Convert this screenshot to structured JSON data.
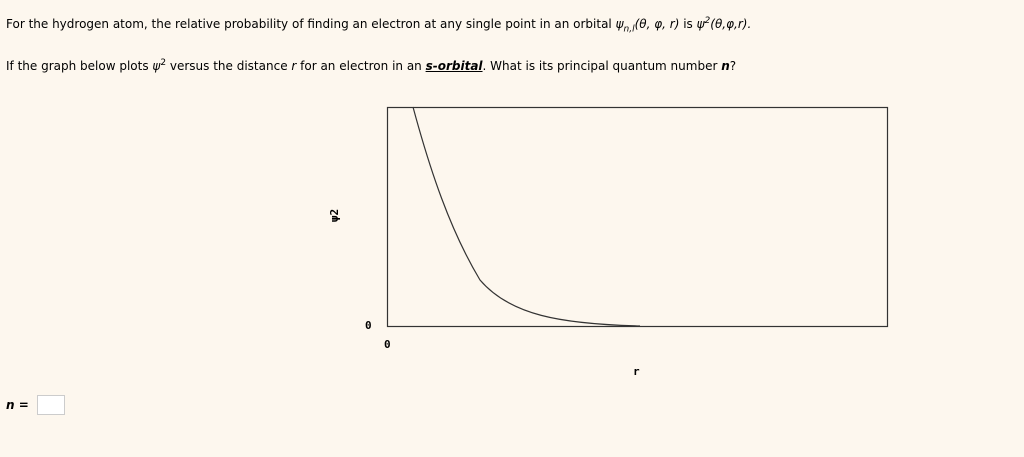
{
  "question": {
    "line1_prefix": "For the hydrogen atom, the relative probability of finding an electron at any single point in an orbital ",
    "psi": "ψ",
    "sub_nl": "n,l",
    "args": "(θ, φ, r)",
    "is": " is ",
    "psi2": "ψ",
    "sup2": "2",
    "args2": "(θ,φ,r).",
    "line2_prefix": "If the graph below plots ",
    "line2_psi": "ψ",
    "line2_sup": "2",
    "line2_mid": " versus the distance ",
    "line2_r": "r",
    "line2_mid2": " for an electron in an ",
    "line2_orbital": "s-orbital",
    "line2_suffix": ". What is its principal quantum number ",
    "line2_n": "n",
    "line2_end": "?"
  },
  "graph": {
    "ylabel": "ψ2",
    "y_zero": "0",
    "x_zero": "0",
    "xlabel": "r"
  },
  "answer": {
    "label": "n",
    "equals": " =",
    "value": ""
  }
}
